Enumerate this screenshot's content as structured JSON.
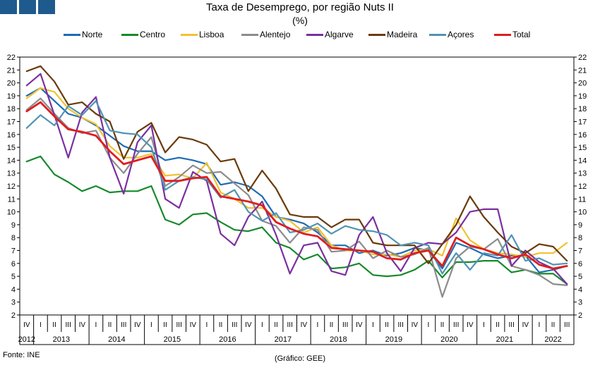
{
  "header": {
    "title": "Taxa de Desemprego, por região Nuts II",
    "subtitle": "(%)"
  },
  "footer": {
    "source": "Fonte: INE",
    "credit": "(Gráfico: GEE)"
  },
  "chart_data": {
    "type": "line",
    "title": "Taxa de Desemprego, por região Nuts II",
    "subtitle": "(%)",
    "ylim": [
      2,
      22
    ],
    "yticks": [
      2,
      3,
      4,
      5,
      6,
      7,
      8,
      9,
      10,
      11,
      12,
      13,
      14,
      15,
      16,
      17,
      18,
      19,
      20,
      21,
      22
    ],
    "grid": false,
    "legend_position": "top",
    "quarters": [
      "IV",
      "I",
      "II",
      "III",
      "IV",
      "I",
      "II",
      "III",
      "IV",
      "I",
      "II",
      "III",
      "IV",
      "I",
      "II",
      "III",
      "IV",
      "I",
      "II",
      "III",
      "IV",
      "I",
      "II",
      "III",
      "IV",
      "I",
      "II",
      "III",
      "IV",
      "I",
      "II",
      "III",
      "IV",
      "I",
      "II",
      "III",
      "IV",
      "I",
      "II",
      "III"
    ],
    "years": [
      {
        "label": "2012",
        "start": 0,
        "end": 0
      },
      {
        "label": "2013",
        "start": 1,
        "end": 4
      },
      {
        "label": "2014",
        "start": 5,
        "end": 8
      },
      {
        "label": "2015",
        "start": 9,
        "end": 12
      },
      {
        "label": "2016",
        "start": 13,
        "end": 16
      },
      {
        "label": "2017",
        "start": 17,
        "end": 20
      },
      {
        "label": "2018",
        "start": 21,
        "end": 24
      },
      {
        "label": "2019",
        "start": 25,
        "end": 28
      },
      {
        "label": "2020",
        "start": 29,
        "end": 32
      },
      {
        "label": "2021",
        "start": 33,
        "end": 36
      },
      {
        "label": "2022",
        "start": 37,
        "end": 39
      }
    ],
    "series": [
      {
        "name": "Norte",
        "color": "#1f6bb5",
        "width": 2.2,
        "values": [
          19.0,
          19.6,
          18.6,
          17.6,
          17.3,
          16.7,
          15.9,
          15.1,
          14.7,
          14.7,
          14.0,
          14.2,
          14.0,
          13.7,
          12.1,
          12.3,
          12.0,
          11.2,
          9.6,
          9.4,
          9.1,
          8.4,
          7.4,
          7.4,
          6.8,
          7.0,
          6.6,
          6.8,
          7.2,
          7.0,
          5.6,
          7.6,
          7.2,
          6.7,
          6.4,
          6.6,
          6.6,
          5.3,
          5.5,
          5.8
        ]
      },
      {
        "name": "Centro",
        "color": "#168a2a",
        "width": 2.2,
        "values": [
          13.9,
          14.3,
          12.9,
          12.3,
          11.6,
          12.0,
          11.5,
          11.6,
          11.6,
          12.0,
          9.4,
          9.0,
          9.8,
          9.9,
          9.2,
          8.6,
          8.5,
          8.8,
          7.6,
          7.2,
          6.3,
          6.7,
          5.6,
          5.7,
          6.0,
          5.1,
          5.0,
          5.1,
          5.5,
          6.2,
          4.9,
          6.1,
          6.1,
          6.2,
          6.2,
          5.3,
          5.5,
          5.2,
          5.2,
          4.4
        ]
      },
      {
        "name": "Lisboa",
        "color": "#f2c12e",
        "width": 2.2,
        "values": [
          18.8,
          19.6,
          19.3,
          18.0,
          17.3,
          16.8,
          15.1,
          14.2,
          14.2,
          14.5,
          12.8,
          12.9,
          12.6,
          13.8,
          11.5,
          11.0,
          10.3,
          10.3,
          9.6,
          9.3,
          8.4,
          8.8,
          7.4,
          7.0,
          7.0,
          6.7,
          6.7,
          6.5,
          7.0,
          7.1,
          6.6,
          9.5,
          7.8,
          7.1,
          6.8,
          6.7,
          6.5,
          6.8,
          6.8,
          7.6
        ]
      },
      {
        "name": "Alentejo",
        "color": "#8c8c8c",
        "width": 2.2,
        "values": [
          17.9,
          18.8,
          17.6,
          16.5,
          16.1,
          16.3,
          14.2,
          13.0,
          14.5,
          15.8,
          12.0,
          12.7,
          13.6,
          13.0,
          13.1,
          12.2,
          11.3,
          9.3,
          8.9,
          7.6,
          8.8,
          8.6,
          6.9,
          7.0,
          7.7,
          6.4,
          7.0,
          6.5,
          6.7,
          7.2,
          3.4,
          6.4,
          7.3,
          7.1,
          7.9,
          5.8,
          5.5,
          5.1,
          4.4,
          4.3
        ]
      },
      {
        "name": "Algarve",
        "color": "#7a2fa0",
        "width": 2.2,
        "values": [
          19.8,
          20.7,
          17.5,
          14.2,
          17.7,
          18.9,
          14.2,
          11.4,
          15.4,
          16.7,
          11.0,
          10.3,
          13.1,
          12.4,
          8.3,
          7.4,
          9.6,
          10.8,
          8.2,
          5.2,
          7.4,
          7.6,
          5.4,
          5.1,
          8.2,
          9.6,
          6.8,
          5.4,
          7.2,
          7.6,
          7.5,
          8.4,
          10.0,
          10.2,
          10.2,
          5.8,
          7.0,
          6.1,
          5.6,
          4.4
        ]
      },
      {
        "name": "Madeira",
        "color": "#6a3a0a",
        "width": 2.2,
        "values": [
          20.9,
          21.3,
          20.1,
          18.3,
          18.5,
          17.6,
          17.0,
          14.1,
          16.2,
          16.9,
          14.6,
          15.8,
          15.6,
          15.2,
          13.9,
          14.1,
          11.6,
          13.2,
          11.8,
          9.8,
          9.6,
          9.6,
          8.8,
          9.4,
          9.4,
          7.6,
          7.4,
          7.4,
          7.4,
          6.0,
          7.5,
          9.0,
          11.2,
          9.6,
          8.4,
          7.3,
          6.8,
          7.5,
          7.3,
          6.2
        ]
      },
      {
        "name": "Açores",
        "color": "#4f94b5",
        "width": 2.2,
        "values": [
          16.5,
          17.5,
          16.7,
          18.2,
          17.5,
          18.6,
          16.3,
          16.1,
          16.0,
          15.0,
          11.7,
          12.4,
          12.7,
          12.5,
          11.1,
          11.7,
          10.0,
          9.3,
          9.9,
          8.4,
          8.6,
          9.1,
          8.3,
          8.9,
          8.6,
          8.5,
          8.2,
          7.4,
          7.6,
          7.4,
          5.2,
          6.8,
          5.5,
          6.8,
          6.6,
          8.2,
          6.2,
          6.4,
          5.9,
          6.0
        ]
      },
      {
        "name": "Total",
        "color": "#e01e1e",
        "width": 2.8,
        "values": [
          17.8,
          18.5,
          17.4,
          16.4,
          16.2,
          15.9,
          14.7,
          13.7,
          14.0,
          14.3,
          12.4,
          12.4,
          12.6,
          12.7,
          11.2,
          11.0,
          10.8,
          10.5,
          9.2,
          8.7,
          8.3,
          8.1,
          7.2,
          7.1,
          7.0,
          6.9,
          6.4,
          6.3,
          6.8,
          7.0,
          5.8,
          8.0,
          7.4,
          7.1,
          6.7,
          6.4,
          6.7,
          5.9,
          5.6,
          5.8
        ]
      }
    ]
  }
}
